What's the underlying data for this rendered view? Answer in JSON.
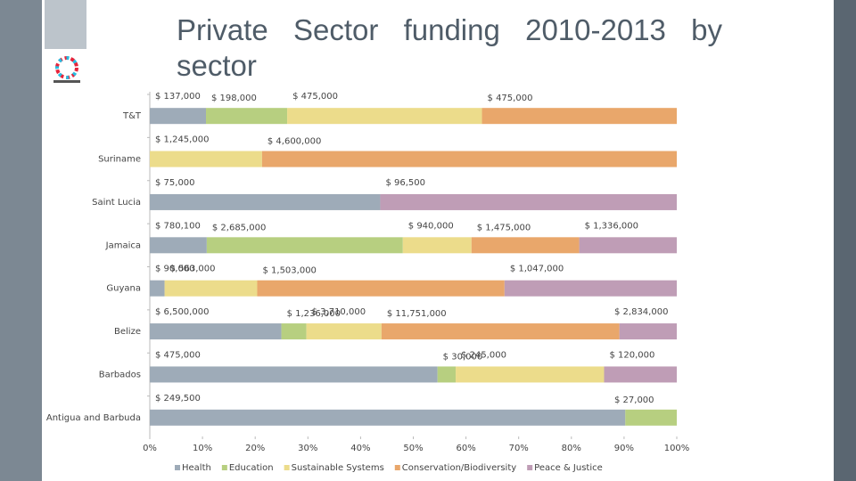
{
  "chart_data": {
    "type": "bar",
    "orientation": "horizontal",
    "stacking": "percent",
    "title": "Private Sector funding 2010-2013 by sector",
    "categories": [
      "T&T",
      "Suriname",
      "Saint Lucia",
      "Jamaica",
      "Guyana",
      "Belize",
      "Barbados",
      "Antigua and Barbuda"
    ],
    "series": [
      {
        "name": "Health",
        "color": "#9eabb8",
        "values": [
          137000,
          null,
          75000,
          780100,
          90000,
          6500000,
          475000,
          249500
        ],
        "value_labels": [
          "$ 137,000",
          null,
          "$ 75,000",
          "$ 780,100",
          "$ 90,000",
          "$ 6,500,000",
          "$ 475,000",
          "$ 249,500"
        ]
      },
      {
        "name": "Education",
        "color": "#b7cf80",
        "values": [
          198000,
          null,
          null,
          2685000,
          null,
          1236000,
          30000,
          27000
        ],
        "value_labels": [
          "$ 198,000",
          null,
          null,
          "$ 2,685,000",
          null,
          "$ 1,236,000",
          "$ 30,000",
          "$ 27,000"
        ]
      },
      {
        "name": "Sustainable Systems",
        "color": "#ecdc8b",
        "values": [
          475000,
          1245000,
          null,
          940000,
          563000,
          3710000,
          245000,
          null
        ],
        "value_labels": [
          "$ 475,000",
          "$ 1,245,000",
          null,
          "$ 940,000",
          "$ 563,000",
          "$ 3,710,000",
          "$ 245,000",
          null
        ]
      },
      {
        "name": "Conservation/Biodiversity",
        "color": "#e9a76b",
        "values": [
          475000,
          4600000,
          null,
          1475000,
          1503000,
          11751000,
          null,
          null
        ],
        "value_labels": [
          "$ 475,000",
          "$ 4,600,000",
          null,
          "$ 1,475,000",
          "$ 1,503,000",
          "$ 11,751,000",
          null,
          null
        ]
      },
      {
        "name": "Peace & Justice",
        "color": "#bf9db6",
        "values": [
          null,
          null,
          96500,
          1336000,
          1047000,
          2834000,
          120000,
          null
        ],
        "value_labels": [
          null,
          null,
          "$ 96,500",
          "$ 1,336,000",
          "$ 1,047,000",
          "$ 2,834,000",
          "$ 120,000",
          null
        ]
      }
    ],
    "xlim": [
      0,
      100
    ],
    "xticks": [
      {
        "value": 0,
        "label": "0%"
      },
      {
        "value": 10,
        "label": "10%"
      },
      {
        "value": 20,
        "label": "20%"
      },
      {
        "value": 30,
        "label": "30%"
      },
      {
        "value": 40,
        "label": "40%"
      },
      {
        "value": 50,
        "label": "50%"
      },
      {
        "value": 60,
        "label": "60%"
      },
      {
        "value": 70,
        "label": "70%"
      },
      {
        "value": 80,
        "label": "80%"
      },
      {
        "value": 90,
        "label": "90%"
      },
      {
        "value": 100,
        "label": "100%"
      }
    ],
    "legend": "bottom"
  }
}
